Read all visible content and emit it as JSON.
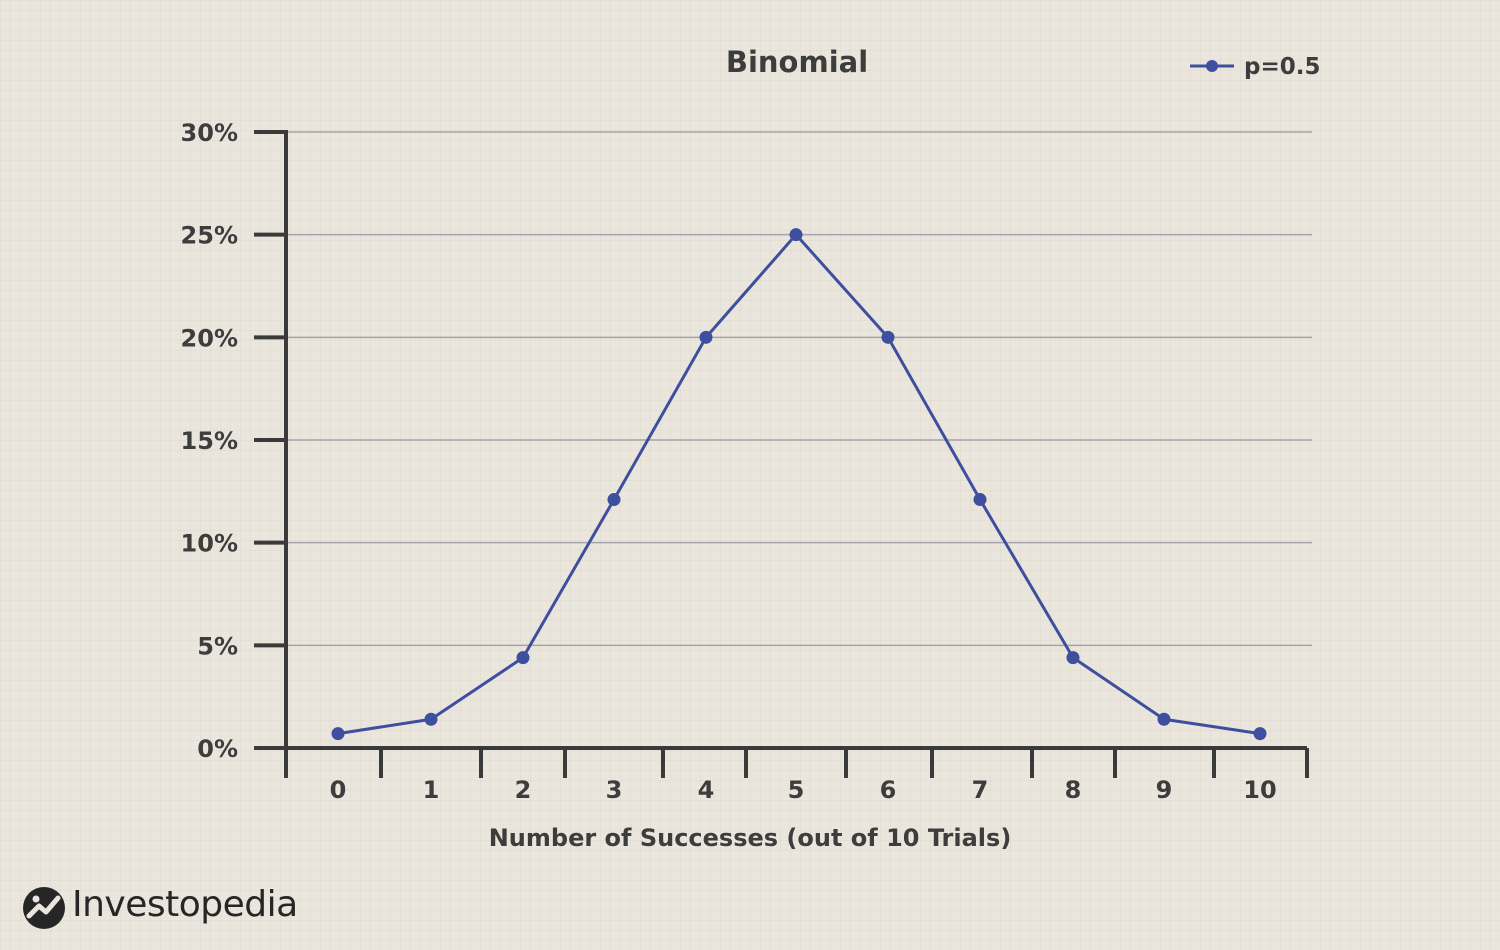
{
  "chart_data": {
    "type": "line",
    "title": "Binomial",
    "xlabel": "Number of Successes (out of 10 Trials)",
    "ylabel": "",
    "x": [
      0,
      1,
      2,
      3,
      4,
      5,
      6,
      7,
      8,
      9,
      10
    ],
    "x_tick_labels": [
      "0",
      "1",
      "2",
      "3",
      "4",
      "5",
      "6",
      "7",
      "8",
      "9",
      "10"
    ],
    "y_ticks": [
      0,
      5,
      10,
      15,
      20,
      25,
      30
    ],
    "y_tick_labels": [
      "0%",
      "5%",
      "10%",
      "15%",
      "20%",
      "25%",
      "30%"
    ],
    "ylim": [
      0,
      30
    ],
    "grid": "horizontal",
    "legend_position": "top-right",
    "series": [
      {
        "name": "p=0.5",
        "color": "#3d4f9e",
        "values": [
          0.7,
          1.4,
          4.4,
          12.1,
          20.0,
          25.0,
          20.0,
          12.1,
          4.4,
          1.4,
          0.7
        ]
      }
    ]
  },
  "branding": {
    "logo_text": "Investopedia",
    "logo_icon": "investopedia-logo-icon"
  }
}
